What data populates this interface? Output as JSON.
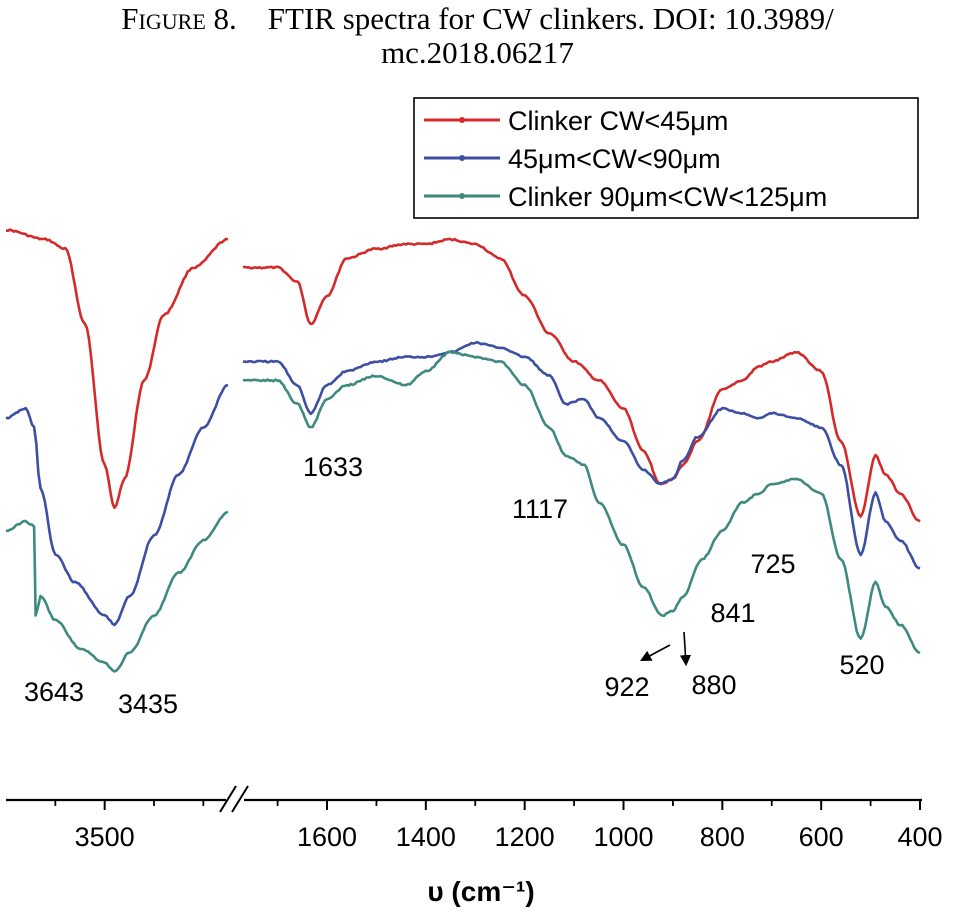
{
  "caption": {
    "figure_label": "Figure 8.",
    "line1": "FTIR spectra for CW clinkers. DOI: 10.3989/",
    "line2": "mc.2018.06217"
  },
  "chart_data": {
    "type": "line",
    "title": "",
    "xlabel": "υ (cm⁻¹)",
    "ylabel": "",
    "x_reversed": true,
    "axis_break": true,
    "left_segment_xlim": [
      3700,
      3250
    ],
    "right_segment_xlim": [
      1770,
      400
    ],
    "left_ticks": [
      {
        "value": 3500,
        "label": "3500"
      }
    ],
    "right_ticks": [
      {
        "value": 1600,
        "label": "1600"
      },
      {
        "value": 1400,
        "label": "1400"
      },
      {
        "value": 1200,
        "label": "1200"
      },
      {
        "value": 1000,
        "label": "1000"
      },
      {
        "value": 800,
        "label": "800"
      },
      {
        "value": 600,
        "label": "600"
      },
      {
        "value": 400,
        "label": "400"
      }
    ],
    "legend_position": "top-right",
    "series": [
      {
        "name": "Clinker CW<45μm",
        "color": "#d42a2a",
        "left": [
          [
            3700,
            100
          ],
          [
            3620,
            98
          ],
          [
            3580,
            96
          ],
          [
            3540,
            80
          ],
          [
            3500,
            50
          ],
          [
            3480,
            41
          ],
          [
            3460,
            47
          ],
          [
            3420,
            68
          ],
          [
            3380,
            82
          ],
          [
            3320,
            92
          ],
          [
            3250,
            98
          ]
        ],
        "right": [
          [
            1770,
            92
          ],
          [
            1700,
            92
          ],
          [
            1660,
            89
          ],
          [
            1633,
            80
          ],
          [
            1600,
            86
          ],
          [
            1560,
            94
          ],
          [
            1500,
            96
          ],
          [
            1440,
            97
          ],
          [
            1400,
            97
          ],
          [
            1350,
            98
          ],
          [
            1300,
            97
          ],
          [
            1250,
            94
          ],
          [
            1200,
            86
          ],
          [
            1150,
            78
          ],
          [
            1100,
            72
          ],
          [
            1050,
            68
          ],
          [
            1000,
            62
          ],
          [
            960,
            53
          ],
          [
            925,
            46
          ],
          [
            900,
            47
          ],
          [
            880,
            50
          ],
          [
            850,
            55
          ],
          [
            800,
            66
          ],
          [
            760,
            68
          ],
          [
            725,
            71
          ],
          [
            700,
            72
          ],
          [
            650,
            74
          ],
          [
            600,
            70
          ],
          [
            560,
            55
          ],
          [
            520,
            39
          ],
          [
            490,
            52
          ],
          [
            470,
            48
          ],
          [
            440,
            44
          ],
          [
            400,
            38
          ]
        ]
      },
      {
        "name": "45μm<CW<90μm",
        "color": "#3d4fa3",
        "left": [
          [
            3700,
            60
          ],
          [
            3660,
            62
          ],
          [
            3643,
            58
          ],
          [
            3630,
            45
          ],
          [
            3600,
            31
          ],
          [
            3560,
            25
          ],
          [
            3500,
            18
          ],
          [
            3480,
            16
          ],
          [
            3450,
            22
          ],
          [
            3400,
            35
          ],
          [
            3350,
            48
          ],
          [
            3300,
            58
          ],
          [
            3250,
            67
          ]
        ],
        "right": [
          [
            1770,
            72
          ],
          [
            1700,
            72
          ],
          [
            1660,
            67
          ],
          [
            1633,
            61
          ],
          [
            1600,
            67
          ],
          [
            1560,
            70
          ],
          [
            1500,
            72
          ],
          [
            1440,
            73
          ],
          [
            1400,
            73
          ],
          [
            1350,
            74
          ],
          [
            1300,
            76
          ],
          [
            1250,
            75
          ],
          [
            1200,
            73
          ],
          [
            1150,
            69
          ],
          [
            1117,
            63
          ],
          [
            1080,
            64
          ],
          [
            1050,
            60
          ],
          [
            1000,
            55
          ],
          [
            960,
            49
          ],
          [
            925,
            46
          ],
          [
            900,
            47
          ],
          [
            880,
            51
          ],
          [
            850,
            56
          ],
          [
            800,
            62
          ],
          [
            760,
            61
          ],
          [
            725,
            60
          ],
          [
            700,
            61
          ],
          [
            650,
            60
          ],
          [
            600,
            58
          ],
          [
            560,
            50
          ],
          [
            520,
            31
          ],
          [
            490,
            44
          ],
          [
            470,
            38
          ],
          [
            440,
            34
          ],
          [
            400,
            28
          ]
        ]
      },
      {
        "name": "Clinker 90μm<CW<125μm",
        "color": "#3f8a80",
        "left": [
          [
            3700,
            36
          ],
          [
            3660,
            38
          ],
          [
            3643,
            37
          ],
          [
            3640,
            18
          ],
          [
            3630,
            22
          ],
          [
            3600,
            17
          ],
          [
            3550,
            11
          ],
          [
            3500,
            8
          ],
          [
            3480,
            6
          ],
          [
            3450,
            10
          ],
          [
            3400,
            18
          ],
          [
            3350,
            27
          ],
          [
            3300,
            34
          ],
          [
            3250,
            40
          ]
        ],
        "right": [
          [
            1770,
            68
          ],
          [
            1700,
            68
          ],
          [
            1660,
            63
          ],
          [
            1633,
            58
          ],
          [
            1600,
            64
          ],
          [
            1560,
            67
          ],
          [
            1500,
            69
          ],
          [
            1440,
            67
          ],
          [
            1400,
            70
          ],
          [
            1350,
            74
          ],
          [
            1300,
            73
          ],
          [
            1250,
            72
          ],
          [
            1200,
            67
          ],
          [
            1150,
            58
          ],
          [
            1117,
            52
          ],
          [
            1080,
            50
          ],
          [
            1050,
            42
          ],
          [
            1000,
            33
          ],
          [
            960,
            24
          ],
          [
            922,
            18
          ],
          [
            900,
            19
          ],
          [
            880,
            22
          ],
          [
            841,
            30
          ],
          [
            800,
            36
          ],
          [
            760,
            42
          ],
          [
            725,
            44
          ],
          [
            700,
            46
          ],
          [
            650,
            47
          ],
          [
            600,
            44
          ],
          [
            560,
            30
          ],
          [
            520,
            13
          ],
          [
            490,
            25
          ],
          [
            470,
            20
          ],
          [
            440,
            16
          ],
          [
            400,
            10
          ]
        ]
      }
    ],
    "annotations": [
      {
        "text": "1633",
        "series": 2,
        "x": 1633,
        "offset": "below"
      },
      {
        "text": "1117",
        "series": 2,
        "x": 1117,
        "offset": "below-left"
      },
      {
        "text": "922",
        "series": 2,
        "x": 922,
        "offset": "below-left-arrow"
      },
      {
        "text": "880",
        "series": 2,
        "x": 880,
        "offset": "below-arrow"
      },
      {
        "text": "841",
        "series": 2,
        "x": 841,
        "offset": "below-right"
      },
      {
        "text": "725",
        "series": 2,
        "x": 725,
        "offset": "below"
      },
      {
        "text": "520",
        "series": 2,
        "x": 520,
        "offset": "below"
      },
      {
        "text": "3643",
        "series": 2,
        "x": 3643,
        "offset": "below-left"
      },
      {
        "text": "3435",
        "series": 2,
        "x": 3435,
        "offset": "below"
      }
    ]
  }
}
